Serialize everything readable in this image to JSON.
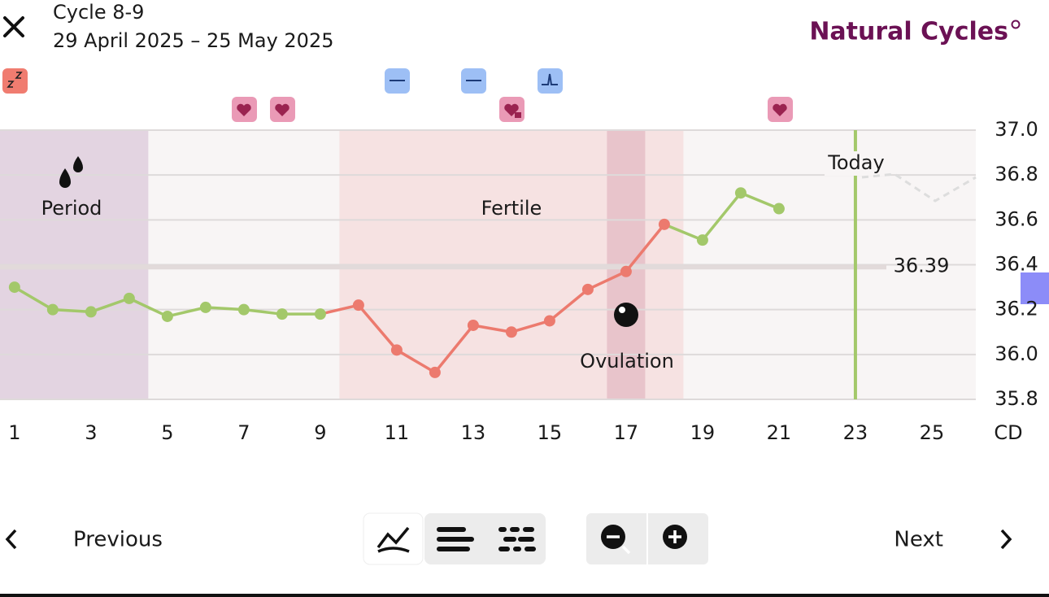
{
  "header": {
    "title": "Cycle 8-9",
    "dates": "29 April 2025 – 25 May 2025",
    "brand": "Natural Cycles"
  },
  "chart_data": {
    "type": "line",
    "x": [
      1,
      2,
      3,
      4,
      5,
      6,
      7,
      8,
      9,
      10,
      11,
      12,
      13,
      14,
      15,
      16,
      17,
      18,
      19,
      20,
      21
    ],
    "values": [
      36.3,
      36.2,
      36.19,
      36.25,
      36.17,
      36.21,
      36.2,
      36.18,
      36.18,
      36.22,
      36.02,
      35.92,
      36.13,
      36.1,
      36.15,
      36.29,
      36.37,
      36.58,
      36.51,
      36.72,
      36.65
    ],
    "colors": [
      "#a3c86a",
      "#a3c86a",
      "#a3c86a",
      "#a3c86a",
      "#a3c86a",
      "#a3c86a",
      "#a3c86a",
      "#a3c86a",
      "#a3c86a",
      "#ec7a6e",
      "#ec7a6e",
      "#ec7a6e",
      "#ec7a6e",
      "#ec7a6e",
      "#ec7a6e",
      "#ec7a6e",
      "#ec7a6e",
      "#ec7a6e",
      "#a3c86a",
      "#a3c86a",
      "#a3c86a"
    ],
    "xlim": [
      0.62,
      26.15
    ],
    "xticks": [
      1,
      3,
      5,
      7,
      9,
      11,
      13,
      15,
      17,
      19,
      21,
      23,
      25
    ],
    "xlabel": "CD",
    "ylim": [
      35.8,
      37.0
    ],
    "yticks": [
      35.8,
      {
        "value": 36,
        "label": "36.0"
      },
      36.2,
      36.4,
      36.6,
      36.8,
      {
        "value": 37,
        "label": "37.0"
      }
    ],
    "grid": true,
    "cover_line": 36.39,
    "today": 23,
    "today_label": "Today",
    "bands": [
      {
        "label": "Period",
        "start": 1,
        "end": 4,
        "color": "#e3d4e1"
      },
      {
        "label": "Fertile",
        "start": 10,
        "end": 18,
        "color": "#f6e2e2"
      },
      {
        "label": "Ovulation",
        "start": 17,
        "end": 17,
        "color": "#e8c4cb"
      }
    ]
  },
  "footer": {
    "previous": "Previous",
    "next": "Next"
  }
}
